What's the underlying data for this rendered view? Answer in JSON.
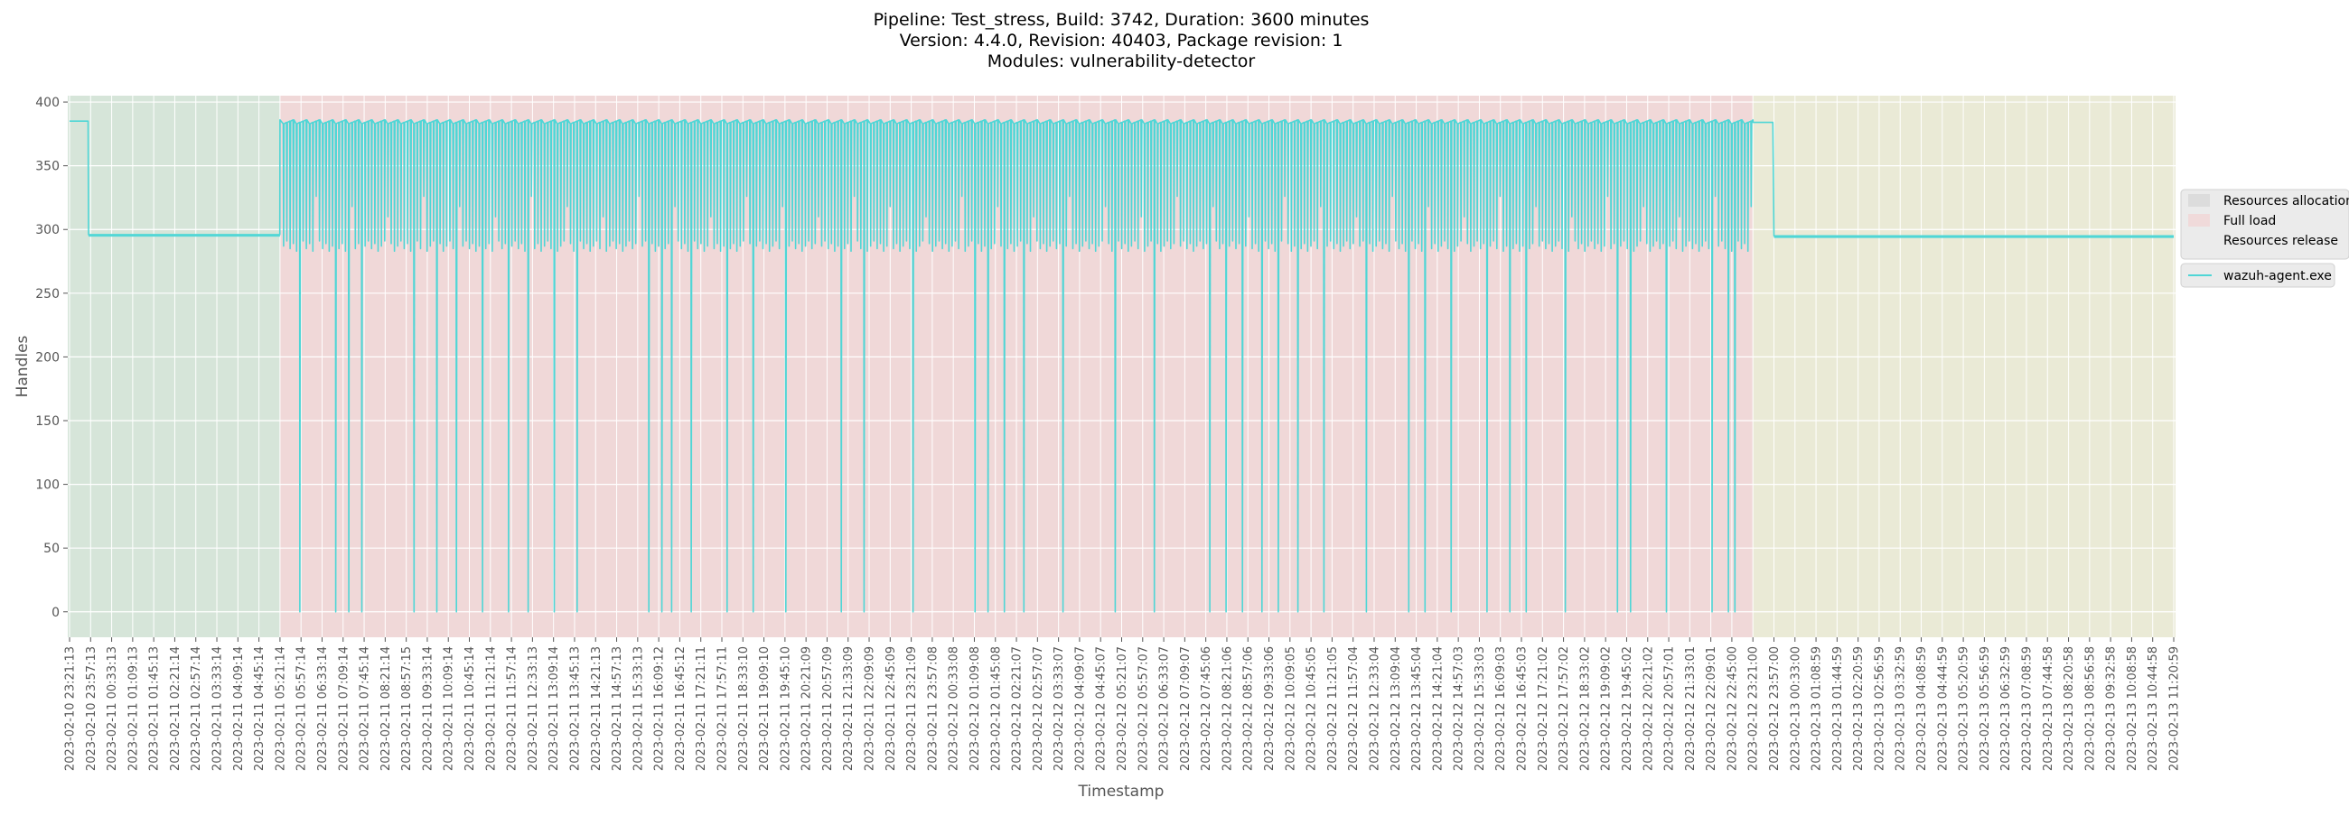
{
  "chart_data": {
    "type": "line",
    "title_lines": [
      "Pipeline: Test_stress, Build: 3742, Duration: 3600 minutes",
      "Version: 4.4.0, Revision: 40403, Package revision: 1",
      "Modules: vulnerability-detector"
    ],
    "xlabel": "Timestamp",
    "ylabel": "Handles",
    "ylim": [
      -20,
      405
    ],
    "yticks": [
      0,
      50,
      100,
      150,
      200,
      250,
      300,
      350,
      400
    ],
    "grid": true,
    "legend_position": "right",
    "x_ticks": [
      "2023-02-10 23:21:13",
      "2023-02-10 23:57:13",
      "2023-02-11 00:33:13",
      "2023-02-11 01:09:13",
      "2023-02-11 01:45:13",
      "2023-02-11 02:21:14",
      "2023-02-11 02:57:14",
      "2023-02-11 03:33:14",
      "2023-02-11 04:09:14",
      "2023-02-11 04:45:14",
      "2023-02-11 05:21:14",
      "2023-02-11 05:57:14",
      "2023-02-11 06:33:14",
      "2023-02-11 07:09:14",
      "2023-02-11 07:45:14",
      "2023-02-11 08:21:14",
      "2023-02-11 08:57:15",
      "2023-02-11 09:33:14",
      "2023-02-11 10:09:14",
      "2023-02-11 10:45:14",
      "2023-02-11 11:21:14",
      "2023-02-11 11:57:14",
      "2023-02-11 12:33:13",
      "2023-02-11 13:09:14",
      "2023-02-11 13:45:13",
      "2023-02-11 14:21:13",
      "2023-02-11 14:57:13",
      "2023-02-11 15:33:13",
      "2023-02-11 16:09:12",
      "2023-02-11 16:45:12",
      "2023-02-11 17:21:11",
      "2023-02-11 17:57:11",
      "2023-02-11 18:33:10",
      "2023-02-11 19:09:10",
      "2023-02-11 19:45:10",
      "2023-02-11 20:21:09",
      "2023-02-11 20:57:09",
      "2023-02-11 21:33:09",
      "2023-02-11 22:09:09",
      "2023-02-11 22:45:09",
      "2023-02-11 23:21:09",
      "2023-02-11 23:57:08",
      "2023-02-12 00:33:08",
      "2023-02-12 01:09:08",
      "2023-02-12 01:45:08",
      "2023-02-12 02:21:07",
      "2023-02-12 02:57:07",
      "2023-02-12 03:33:07",
      "2023-02-12 04:09:07",
      "2023-02-12 04:45:07",
      "2023-02-12 05:21:07",
      "2023-02-12 05:57:07",
      "2023-02-12 06:33:07",
      "2023-02-12 07:09:07",
      "2023-02-12 07:45:06",
      "2023-02-12 08:21:06",
      "2023-02-12 08:57:06",
      "2023-02-12 09:33:06",
      "2023-02-12 10:09:05",
      "2023-02-12 10:45:05",
      "2023-02-12 11:21:05",
      "2023-02-12 11:57:04",
      "2023-02-12 12:33:04",
      "2023-02-12 13:09:04",
      "2023-02-12 13:45:04",
      "2023-02-12 14:21:04",
      "2023-02-12 14:57:03",
      "2023-02-12 15:33:03",
      "2023-02-12 16:09:03",
      "2023-02-12 16:45:03",
      "2023-02-12 17:21:02",
      "2023-02-12 17:57:02",
      "2023-02-12 18:33:02",
      "2023-02-12 19:09:02",
      "2023-02-12 19:45:02",
      "2023-02-12 20:21:02",
      "2023-02-12 20:57:01",
      "2023-02-12 21:33:01",
      "2023-02-12 22:09:01",
      "2023-02-12 22:45:00",
      "2023-02-12 23:21:00",
      "2023-02-12 23:57:00",
      "2023-02-13 00:33:00",
      "2023-02-13 01:08:59",
      "2023-02-13 01:44:59",
      "2023-02-13 02:20:59",
      "2023-02-13 02:56:59",
      "2023-02-13 03:32:59",
      "2023-02-13 04:08:59",
      "2023-02-13 04:44:59",
      "2023-02-13 05:20:59",
      "2023-02-13 05:56:59",
      "2023-02-13 06:32:59",
      "2023-02-13 07:08:59",
      "2023-02-13 07:44:58",
      "2023-02-13 08:20:58",
      "2023-02-13 08:56:58",
      "2023-02-13 09:32:58",
      "2023-02-13 10:08:58",
      "2023-02-13 10:44:58",
      "2023-02-13 11:20:59"
    ],
    "phases": [
      {
        "name": "Resources allocation",
        "start_tick": 0,
        "end_tick": 10,
        "color": "#cfe3d3"
      },
      {
        "name": "Full load",
        "start_tick": 10,
        "end_tick": 80,
        "color": "#f2d1d1"
      },
      {
        "name": "Resources release",
        "start_tick": 80,
        "end_tick": 100,
        "color": "#eae9cf"
      }
    ],
    "series": [
      {
        "name": "wazuh-agent.exe",
        "color": "#4fd6d6",
        "segments": [
          {
            "start": 0,
            "end": 0.9,
            "value": 385
          },
          {
            "start": 0.9,
            "end": 10,
            "value": 296
          },
          {
            "start": 10,
            "end": 80,
            "value": 386,
            "dips_to": [
              283,
              0
            ]
          },
          {
            "start": 80,
            "end": 81,
            "value": 384
          },
          {
            "start": 81,
            "end": 100,
            "value": 295
          }
        ],
        "zero_dips_at_ticks": [
          10.9,
          11.6,
          12.5,
          13.2,
          13.8,
          15.1,
          16.3,
          17.3,
          18.3,
          19.5,
          20.8,
          21.7,
          22.9,
          24.0,
          25.3,
          27.5,
          28.1,
          28.6,
          29.4,
          31.1,
          32.4,
          34.0,
          36.6,
          37.7,
          40.0,
          40.6,
          42.9,
          43.5,
          44.4,
          45.3,
          47.1,
          49.6,
          51.4,
          52.5,
          54.1,
          54.8,
          55.6,
          56.6,
          57.4,
          58.3,
          59.6,
          61.5,
          62.8,
          63.6,
          64.4,
          65.6,
          67.2,
          68.3,
          69.1,
          71.0,
          73.5,
          74.1,
          75.8,
          76.4,
          77.9,
          78.7,
          79.1
        ]
      }
    ]
  }
}
